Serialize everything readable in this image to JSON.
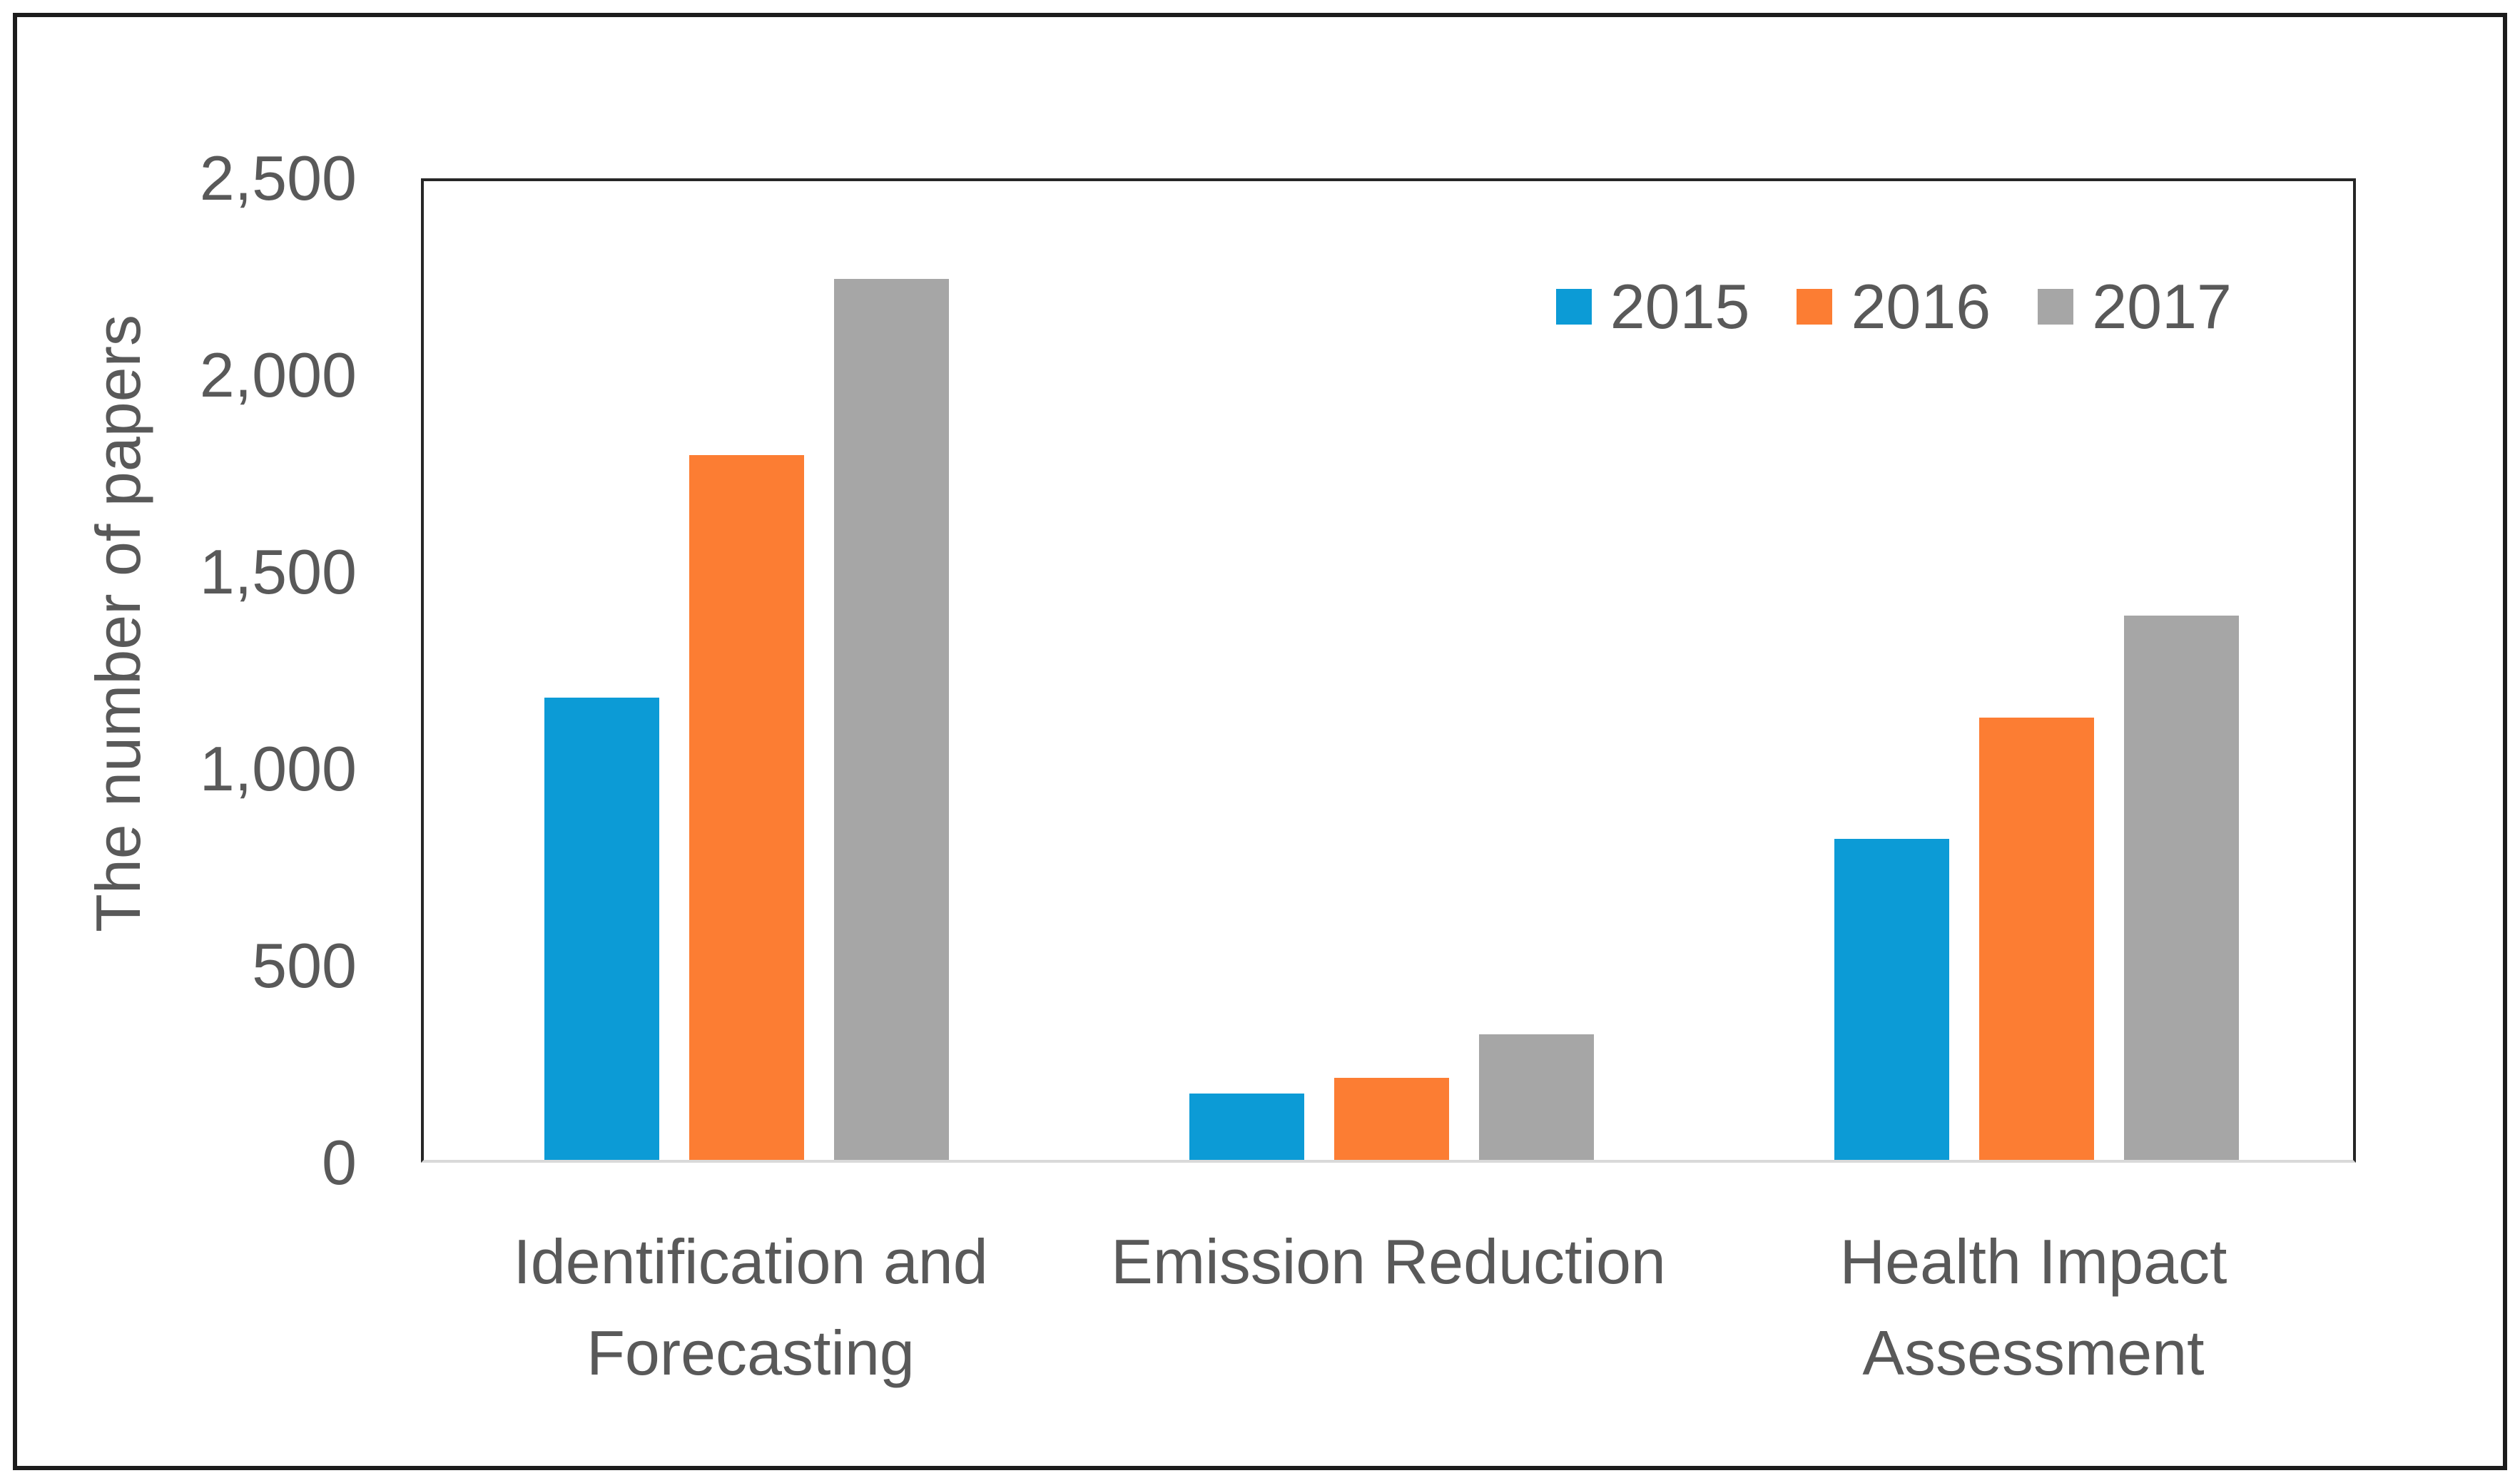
{
  "chart_data": {
    "type": "bar",
    "title": "",
    "xlabel": "",
    "ylabel": "The number of papers",
    "categories": [
      "Identification and Forecasting",
      "Emission Reduction",
      "Health Impact Assessment"
    ],
    "series": [
      {
        "name": "2015",
        "color": "#0C9BD6",
        "values": [
          1180,
          170,
          820
        ]
      },
      {
        "name": "2016",
        "color": "#FC7D33",
        "values": [
          1800,
          210,
          1130
        ]
      },
      {
        "name": "2017",
        "color": "#A6A6A6",
        "values": [
          2250,
          320,
          1390
        ]
      }
    ],
    "ylim": [
      0,
      2500
    ],
    "ytick_values": [
      2500,
      2000,
      1500,
      1000,
      500,
      0
    ],
    "ytick_labels": [
      "2,500",
      "2,000",
      "1,500",
      "1,000",
      "500",
      "0"
    ],
    "grid": false,
    "legend_position": "top-right",
    "plot_border_color": "#262626",
    "baseline_color": "#d9d9d9",
    "text_color": "#595959"
  }
}
